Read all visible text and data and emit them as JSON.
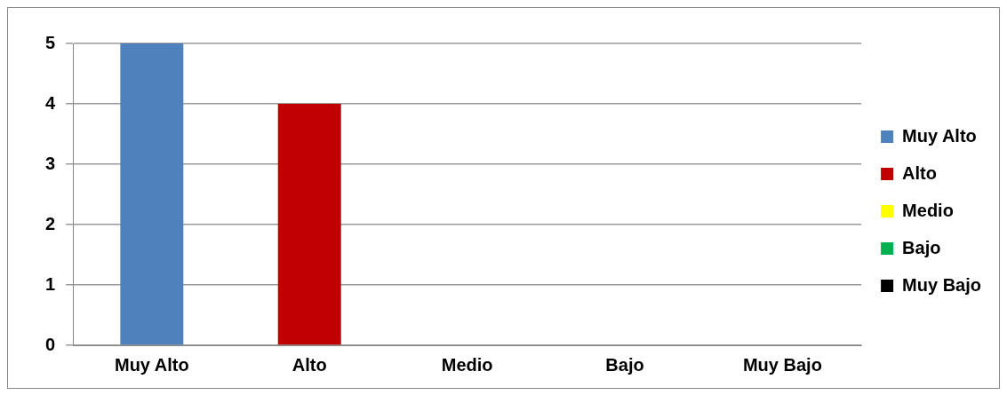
{
  "chart_data": {
    "type": "bar",
    "categories": [
      "Muy Alto",
      "Alto",
      "Medio",
      "Bajo",
      "Muy Bajo"
    ],
    "series": [
      {
        "name": "Muy Alto",
        "color": "#4f81bd",
        "values": [
          5,
          null,
          null,
          null,
          null
        ]
      },
      {
        "name": "Alto",
        "color": "#c00000",
        "values": [
          null,
          4,
          null,
          null,
          null
        ]
      },
      {
        "name": "Medio",
        "color": "#ffff00",
        "values": [
          null,
          null,
          0,
          null,
          null
        ]
      },
      {
        "name": "Bajo",
        "color": "#00b050",
        "values": [
          null,
          null,
          null,
          0,
          null
        ]
      },
      {
        "name": "Muy Bajo",
        "color": "#000000",
        "values": [
          null,
          null,
          null,
          null,
          0
        ]
      }
    ],
    "ylim": [
      0,
      5
    ],
    "yticks": [
      0,
      1,
      2,
      3,
      4,
      5
    ],
    "grid": "y",
    "legend": "right"
  }
}
